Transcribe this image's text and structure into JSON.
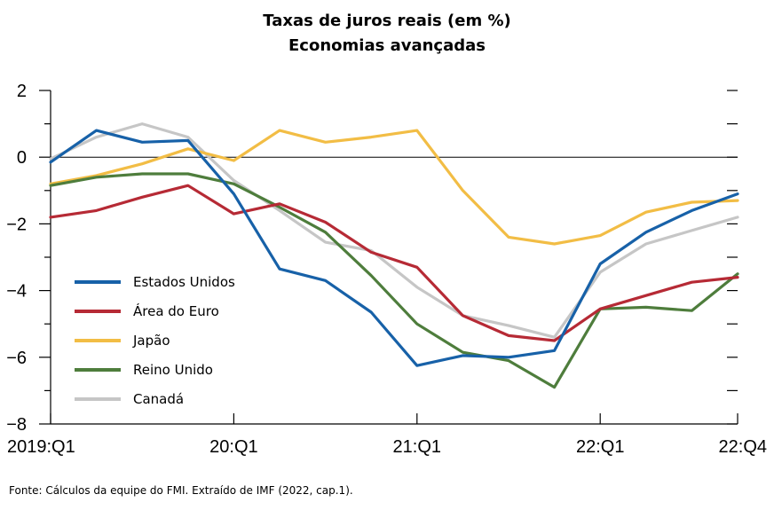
{
  "chart_data": {
    "type": "line",
    "title": "Taxas de juros reais (em %)",
    "subtitle": "Economias avançadas",
    "xlabel": "",
    "ylabel": "",
    "ylim": [
      -8,
      2
    ],
    "yticks": [
      2,
      0,
      -2,
      -4,
      -6,
      -8
    ],
    "ytick_labels": [
      "2",
      "0",
      "−2",
      "−4",
      "−6",
      "−8"
    ],
    "xlim": [
      0,
      15
    ],
    "xticks": [
      0,
      4,
      8,
      12,
      15
    ],
    "xtick_labels": [
      "2019:Q1",
      "20:Q1",
      "21:Q1",
      "22:Q1",
      "22:Q4"
    ],
    "grid": false,
    "zero_line": true,
    "legend_position": "left",
    "series": [
      {
        "name": "Estados Unidos",
        "color": "#1761a8",
        "x": [
          0,
          1,
          2,
          3,
          4,
          5,
          6,
          7,
          8,
          9,
          10,
          11,
          12,
          13,
          14,
          15
        ],
        "values": [
          -0.15,
          0.8,
          0.45,
          0.5,
          -1.1,
          -3.35,
          -3.7,
          -4.65,
          -6.25,
          -5.95,
          -6.0,
          -5.8,
          -3.2,
          -2.25,
          -1.6,
          -1.1
        ]
      },
      {
        "name": "Área do Euro",
        "color": "#b62a35",
        "x": [
          0,
          1,
          2,
          3,
          4,
          5,
          6,
          7,
          8,
          9,
          10,
          11,
          12,
          13,
          14,
          15
        ],
        "values": [
          -1.8,
          -1.6,
          -1.2,
          -0.85,
          -1.7,
          -1.4,
          -1.95,
          -2.85,
          -3.3,
          -4.75,
          -5.35,
          -5.5,
          -4.55,
          -4.15,
          -3.75,
          -3.6
        ]
      },
      {
        "name": "Japão",
        "color": "#f2bd45",
        "x": [
          0,
          1,
          2,
          3,
          4,
          5,
          6,
          7,
          8,
          9,
          10,
          11,
          12,
          13,
          14,
          15
        ],
        "values": [
          -0.8,
          -0.55,
          -0.2,
          0.25,
          -0.1,
          0.8,
          0.45,
          0.6,
          0.8,
          -1.0,
          -2.4,
          -2.6,
          -2.35,
          -1.65,
          -1.35,
          -1.3
        ]
      },
      {
        "name": "Reino Unido",
        "color": "#4e7d3c",
        "x": [
          0,
          1,
          2,
          3,
          4,
          5,
          6,
          7,
          8,
          9,
          10,
          11,
          12,
          13,
          14,
          15
        ],
        "values": [
          -0.85,
          -0.6,
          -0.5,
          -0.5,
          -0.8,
          -1.5,
          -2.25,
          -3.55,
          -5.0,
          -5.85,
          -6.1,
          -6.9,
          -4.55,
          -4.5,
          -4.6,
          -3.5
        ]
      },
      {
        "name": "Canadá",
        "color": "#c6c6c6",
        "x": [
          0,
          1,
          2,
          3,
          4,
          5,
          6,
          7,
          8,
          9,
          10,
          11,
          12,
          13,
          14,
          15
        ],
        "values": [
          -0.05,
          0.6,
          1.0,
          0.6,
          -0.7,
          -1.6,
          -2.55,
          -2.8,
          -3.9,
          -4.75,
          -5.05,
          -5.4,
          -3.45,
          -2.6,
          -2.2,
          -1.8
        ]
      }
    ],
    "legend_order": [
      "Estados Unidos",
      "Área do Euro",
      "Japão",
      "Reino Unido",
      "Canadá"
    ],
    "source": "Fonte: Cálculos da equipe do FMI. Extraído de IMF (2022, cap.1)."
  }
}
